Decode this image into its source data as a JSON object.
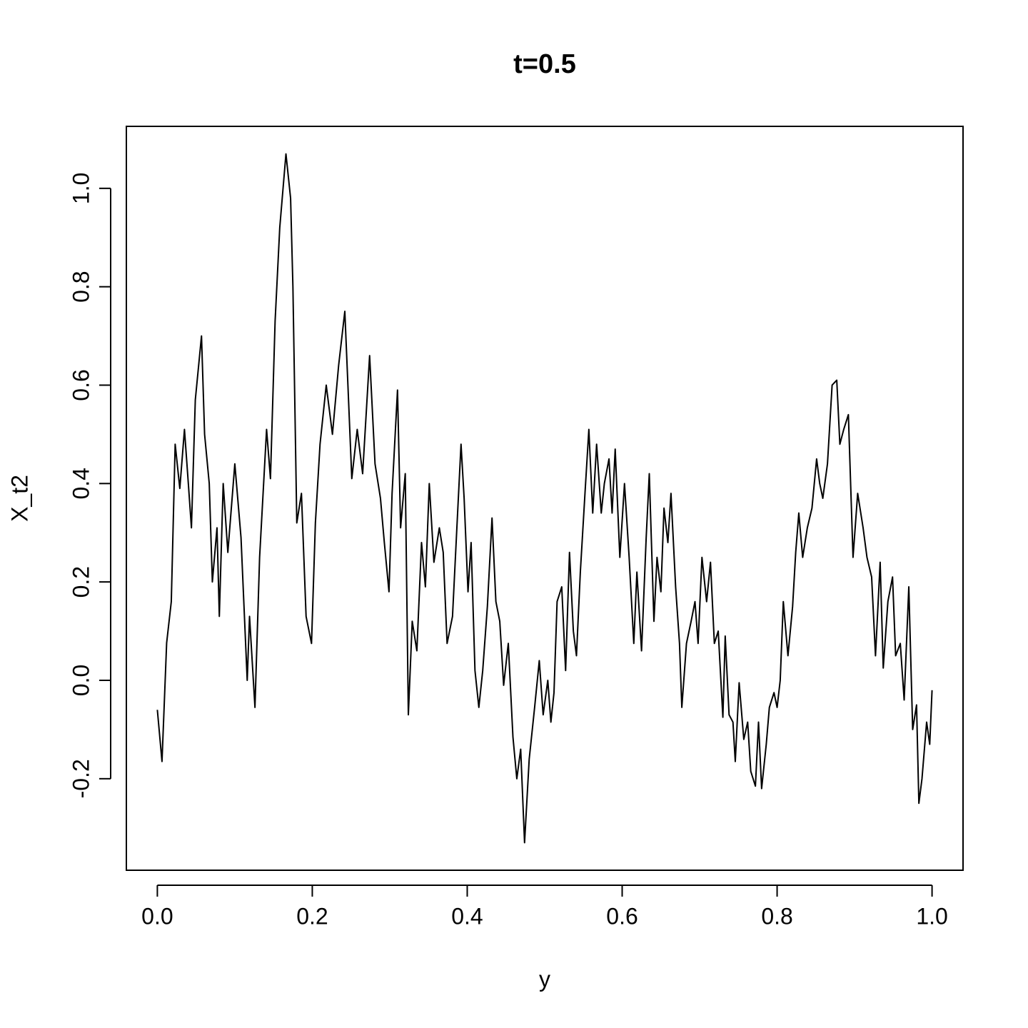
{
  "chart_data": {
    "type": "line",
    "title": "t=0.5",
    "x_label": "y",
    "y_label": "X_t2",
    "x": [
      0,
      0.006,
      0.012,
      0.018,
      0.023,
      0.029,
      0.035,
      0.04,
      0.044,
      0.049,
      0.057,
      0.061,
      0.067,
      0.071,
      0.077,
      0.08,
      0.085,
      0.091,
      0.1,
      0.108,
      0.116,
      0.119,
      0.126,
      0.132,
      0.141,
      0.146,
      0.152,
      0.158,
      0.166,
      0.172,
      0.175,
      0.18,
      0.186,
      0.192,
      0.199,
      0.204,
      0.21,
      0.218,
      0.226,
      0.234,
      0.242,
      0.246,
      0.251,
      0.258,
      0.265,
      0.274,
      0.281,
      0.288,
      0.293,
      0.299,
      0.303,
      0.31,
      0.314,
      0.32,
      0.324,
      0.329,
      0.335,
      0.341,
      0.346,
      0.351,
      0.357,
      0.364,
      0.369,
      0.374,
      0.381,
      0.386,
      0.392,
      0.396,
      0.401,
      0.405,
      0.41,
      0.415,
      0.42,
      0.426,
      0.432,
      0.437,
      0.442,
      0.447,
      0.453,
      0.459,
      0.464,
      0.469,
      0.474,
      0.48,
      0.487,
      0.493,
      0.498,
      0.504,
      0.508,
      0.512,
      0.516,
      0.522,
      0.527,
      0.532,
      0.537,
      0.541,
      0.546,
      0.552,
      0.557,
      0.562,
      0.567,
      0.573,
      0.577,
      0.583,
      0.587,
      0.591,
      0.597,
      0.603,
      0.609,
      0.615,
      0.619,
      0.625,
      0.631,
      0.635,
      0.641,
      0.645,
      0.65,
      0.654,
      0.659,
      0.663,
      0.669,
      0.674,
      0.677,
      0.683,
      0.689,
      0.694,
      0.698,
      0.703,
      0.709,
      0.714,
      0.719,
      0.724,
      0.73,
      0.733,
      0.738,
      0.743,
      0.746,
      0.751,
      0.757,
      0.762,
      0.766,
      0.772,
      0.776,
      0.78,
      0.786,
      0.79,
      0.796,
      0.8,
      0.804,
      0.808,
      0.814,
      0.82,
      0.824,
      0.828,
      0.833,
      0.839,
      0.845,
      0.851,
      0.855,
      0.859,
      0.865,
      0.871,
      0.877,
      0.881,
      0.886,
      0.892,
      0.898,
      0.904,
      0.911,
      0.916,
      0.922,
      0.927,
      0.933,
      0.937,
      0.943,
      0.949,
      0.953,
      0.959,
      0.964,
      0.97,
      0.975,
      0.98,
      0.983,
      0.987,
      0.993,
      0.997,
      1.0
    ],
    "values": [
      -0.06,
      -0.165,
      0.076,
      0.16,
      0.48,
      0.39,
      0.51,
      0.4,
      0.31,
      0.57,
      0.7,
      0.5,
      0.4,
      0.2,
      0.31,
      0.13,
      0.4,
      0.26,
      0.44,
      0.29,
      0.0,
      0.13,
      -0.055,
      0.25,
      0.51,
      0.41,
      0.73,
      0.92,
      1.07,
      0.98,
      0.8,
      0.32,
      0.38,
      0.13,
      0.075,
      0.32,
      0.48,
      0.6,
      0.5,
      0.64,
      0.75,
      0.6,
      0.41,
      0.51,
      0.42,
      0.66,
      0.44,
      0.37,
      0.28,
      0.18,
      0.38,
      0.59,
      0.31,
      0.42,
      -0.07,
      0.12,
      0.06,
      0.28,
      0.19,
      0.4,
      0.24,
      0.31,
      0.26,
      0.075,
      0.13,
      0.29,
      0.48,
      0.37,
      0.18,
      0.28,
      0.02,
      -0.055,
      0.02,
      0.15,
      0.33,
      0.16,
      0.12,
      -0.01,
      0.075,
      -0.115,
      -0.2,
      -0.14,
      -0.33,
      -0.16,
      -0.055,
      0.04,
      -0.07,
      0.0,
      -0.085,
      -0.025,
      0.16,
      0.19,
      0.02,
      0.26,
      0.1,
      0.05,
      0.22,
      0.38,
      0.51,
      0.34,
      0.48,
      0.34,
      0.4,
      0.45,
      0.34,
      0.47,
      0.25,
      0.4,
      0.25,
      0.075,
      0.22,
      0.06,
      0.29,
      0.42,
      0.12,
      0.25,
      0.18,
      0.35,
      0.28,
      0.38,
      0.19,
      0.075,
      -0.055,
      0.075,
      0.12,
      0.16,
      0.075,
      0.25,
      0.16,
      0.24,
      0.075,
      0.1,
      -0.075,
      0.09,
      -0.07,
      -0.085,
      -0.165,
      -0.005,
      -0.12,
      -0.085,
      -0.185,
      -0.215,
      -0.085,
      -0.22,
      -0.13,
      -0.055,
      -0.025,
      -0.055,
      0.0,
      0.16,
      0.05,
      0.15,
      0.26,
      0.34,
      0.25,
      0.31,
      0.35,
      0.45,
      0.4,
      0.37,
      0.44,
      0.6,
      0.61,
      0.48,
      0.51,
      0.54,
      0.25,
      0.38,
      0.31,
      0.25,
      0.21,
      0.05,
      0.24,
      0.025,
      0.16,
      0.21,
      0.05,
      0.075,
      -0.04,
      0.19,
      -0.1,
      -0.05,
      -0.25,
      -0.2,
      -0.085,
      -0.13,
      -0.02
    ],
    "color": "#000000",
    "xlim": [
      -0.04,
      1.04
    ],
    "ylim": [
      -0.386,
      1.126
    ],
    "xticks": [
      {
        "value": 0,
        "label": "0.0"
      },
      0.2,
      0.4,
      0.6,
      0.8,
      {
        "value": 1,
        "label": "1.0"
      }
    ],
    "yticks": [
      -0.2,
      {
        "value": 0,
        "label": "0.0"
      },
      0.2,
      0.4,
      0.6,
      0.8,
      {
        "value": 1,
        "label": "1.0"
      }
    ]
  }
}
